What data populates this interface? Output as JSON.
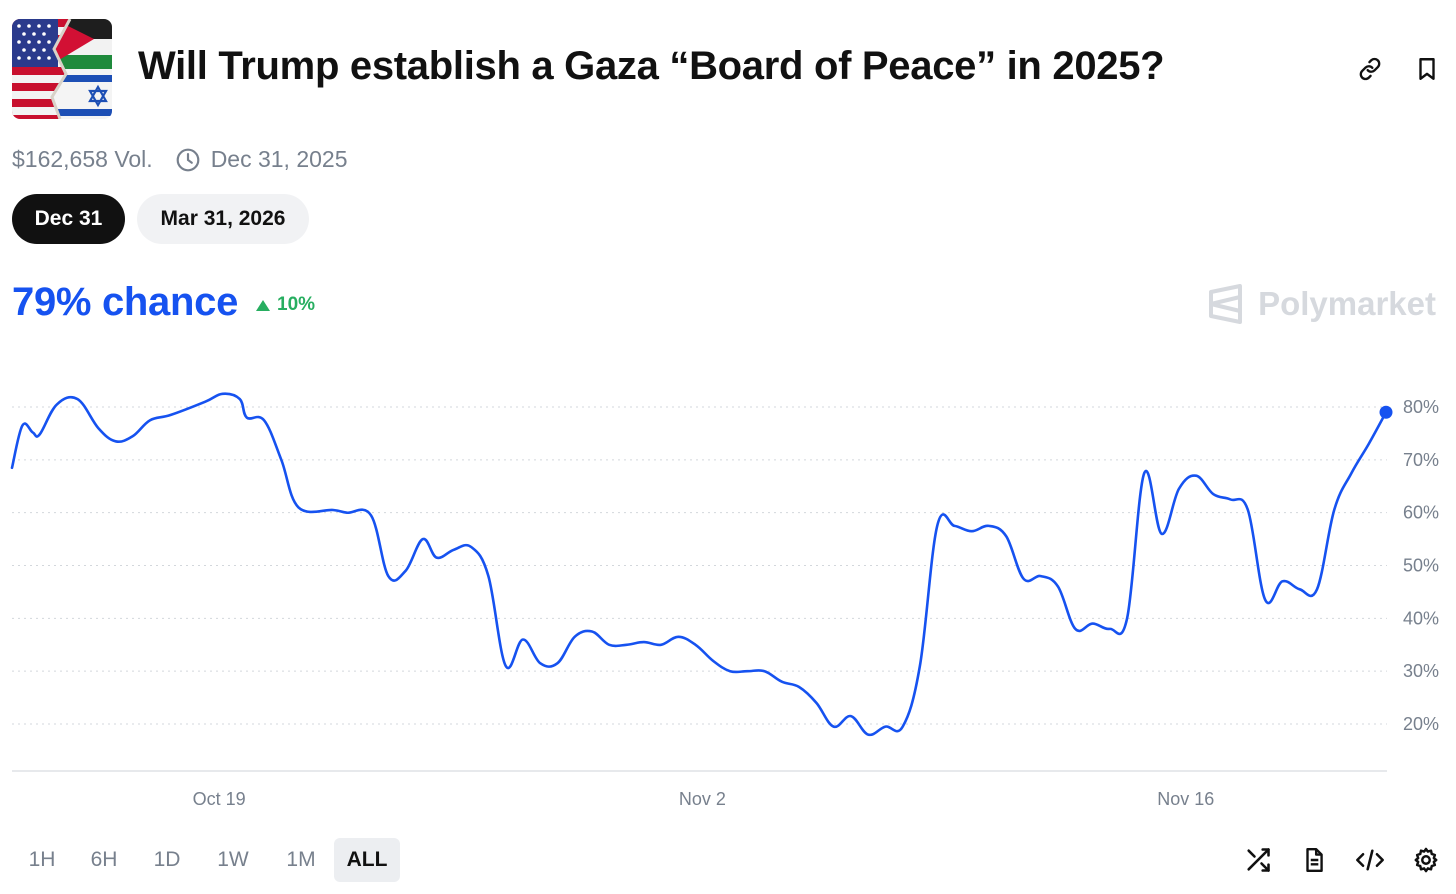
{
  "market": {
    "title": "Will Trump establish a Gaza “Board of Peace” in 2025?",
    "icon_name": "us-palestine-israel-flags-icon",
    "volume": "$162,658 Vol.",
    "end_date": "Dec 31, 2025"
  },
  "header_actions": {
    "link_icon": "link-icon",
    "bookmark_icon": "bookmark-icon"
  },
  "date_tabs": [
    {
      "label": "Dec 31",
      "active": true
    },
    {
      "label": "Mar 31, 2026",
      "active": false
    }
  ],
  "summary": {
    "chance": "79% chance",
    "change": "10%",
    "change_direction": "up"
  },
  "brand": {
    "name": "Polymarket",
    "icon_name": "polymarket-logo-icon"
  },
  "colors": {
    "accent": "#1652f0",
    "positive": "#27ae60",
    "muted": "#77808d",
    "watermark": "#d6d9de"
  },
  "chart_data": {
    "type": "line",
    "x_start": "Oct 13",
    "x_end": "Nov 18",
    "x_ticks": [
      {
        "label": "Oct 19",
        "x": 6
      },
      {
        "label": "Nov 2",
        "x": 20
      },
      {
        "label": "Nov 16",
        "x": 34
      }
    ],
    "y_ticks": [
      {
        "label": "80%",
        "value": 80
      },
      {
        "label": "70%",
        "value": 70
      },
      {
        "label": "60%",
        "value": 60
      },
      {
        "label": "50%",
        "value": 50
      },
      {
        "label": "40%",
        "value": 40
      },
      {
        "label": "30%",
        "value": 30
      },
      {
        "label": "20%",
        "value": 20
      }
    ],
    "grid": true,
    "series": [
      {
        "values": [
          [
            0.0,
            68.5
          ],
          [
            0.3,
            76.5
          ],
          [
            0.6,
            75.2
          ],
          [
            0.8,
            74.8
          ],
          [
            1.3,
            80.5
          ],
          [
            1.9,
            81.5
          ],
          [
            2.5,
            76
          ],
          [
            3.0,
            73.5
          ],
          [
            3.5,
            74.5
          ],
          [
            4.0,
            77.5
          ],
          [
            4.6,
            78.5
          ],
          [
            5.6,
            81
          ],
          [
            6.1,
            82.5
          ],
          [
            6.6,
            81.5
          ],
          [
            6.8,
            78
          ],
          [
            7.3,
            77.5
          ],
          [
            7.8,
            70
          ],
          [
            8.3,
            61
          ],
          [
            9.3,
            60.5
          ],
          [
            9.7,
            60
          ],
          [
            10.4,
            59.5
          ],
          [
            10.9,
            48
          ],
          [
            11.4,
            49
          ],
          [
            11.9,
            55
          ],
          [
            12.3,
            51.5
          ],
          [
            12.8,
            53
          ],
          [
            13.3,
            53.5
          ],
          [
            13.8,
            48
          ],
          [
            14.3,
            31
          ],
          [
            14.8,
            36
          ],
          [
            15.3,
            31.5
          ],
          [
            15.8,
            31.5
          ],
          [
            16.3,
            36.5
          ],
          [
            16.8,
            37.5
          ],
          [
            17.3,
            35
          ],
          [
            17.8,
            35
          ],
          [
            18.3,
            35.5
          ],
          [
            18.8,
            35
          ],
          [
            19.3,
            36.5
          ],
          [
            19.8,
            35
          ],
          [
            20.3,
            32
          ],
          [
            20.8,
            30
          ],
          [
            21.3,
            30
          ],
          [
            21.8,
            30
          ],
          [
            22.3,
            28
          ],
          [
            22.8,
            27
          ],
          [
            23.3,
            24
          ],
          [
            23.8,
            19.5
          ],
          [
            24.3,
            21.5
          ],
          [
            24.8,
            18
          ],
          [
            25.3,
            19.5
          ],
          [
            25.8,
            19.5
          ],
          [
            26.3,
            31
          ],
          [
            26.8,
            57.5
          ],
          [
            27.3,
            57.5
          ],
          [
            27.8,
            56.5
          ],
          [
            28.3,
            57.5
          ],
          [
            28.8,
            55.5
          ],
          [
            29.3,
            47.5
          ],
          [
            29.8,
            48
          ],
          [
            30.3,
            46
          ],
          [
            30.8,
            38
          ],
          [
            31.3,
            39
          ],
          [
            31.8,
            38
          ],
          [
            32.3,
            40
          ],
          [
            32.8,
            67.5
          ],
          [
            33.3,
            56
          ],
          [
            33.8,
            64.5
          ],
          [
            34.3,
            67
          ],
          [
            34.8,
            63.5
          ],
          [
            35.3,
            62.5
          ],
          [
            35.8,
            60.5
          ],
          [
            36.3,
            43.5
          ],
          [
            36.8,
            47
          ],
          [
            37.3,
            45.5
          ],
          [
            37.8,
            45.5
          ],
          [
            38.3,
            60.5
          ],
          [
            38.8,
            67.5
          ],
          [
            39.3,
            73
          ],
          [
            39.8,
            79
          ]
        ]
      }
    ],
    "y_range": [
      11,
      88
    ],
    "x_range": [
      0,
      39.8
    ],
    "current_value": 79
  },
  "time_ranges": [
    {
      "label": "1H",
      "active": false
    },
    {
      "label": "6H",
      "active": false
    },
    {
      "label": "1D",
      "active": false
    },
    {
      "label": "1W",
      "active": false
    },
    {
      "label": "1M",
      "active": false
    },
    {
      "label": "ALL",
      "active": true
    }
  ],
  "toolbar": {
    "shuffle_icon": "shuffle-icon",
    "document_icon": "document-icon",
    "embed_icon": "code-embed-icon",
    "settings_icon": "gear-icon"
  }
}
